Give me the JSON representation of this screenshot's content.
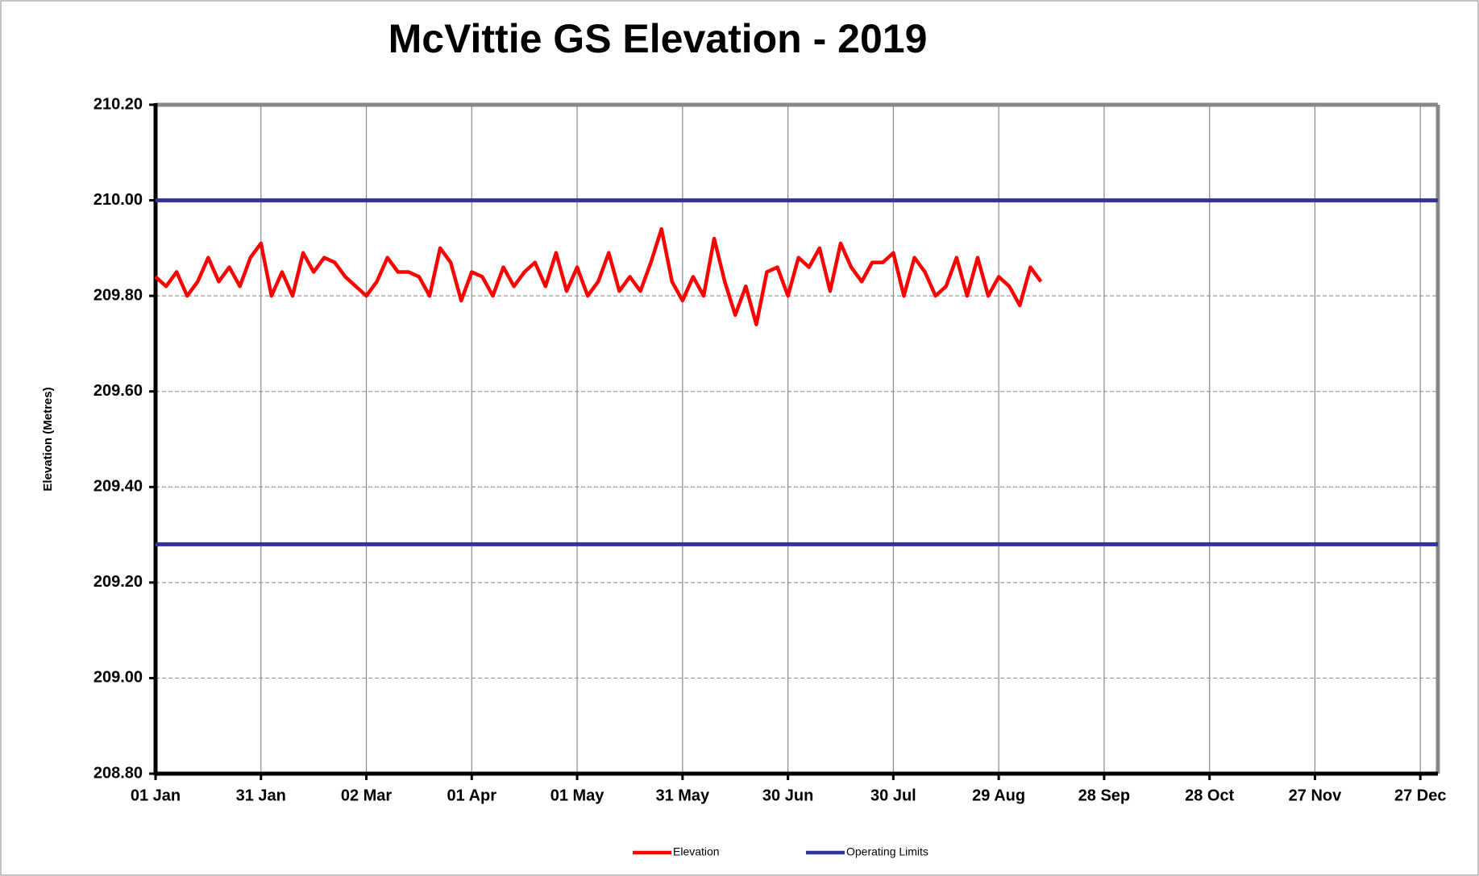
{
  "chart_data": {
    "type": "line",
    "title": "McVittie GS Elevation - 2019",
    "y_label": "Elevation (Metres)",
    "xlim": [
      0,
      365
    ],
    "xticks": [
      {
        "value": 0,
        "label": "01 Jan"
      },
      {
        "value": 30,
        "label": "31 Jan"
      },
      {
        "value": 60,
        "label": "02 Mar"
      },
      {
        "value": 90,
        "label": "01 Apr"
      },
      {
        "value": 120,
        "label": "01 May"
      },
      {
        "value": 150,
        "label": "31 May"
      },
      {
        "value": 180,
        "label": "30 Jun"
      },
      {
        "value": 210,
        "label": "30 Jul"
      },
      {
        "value": 240,
        "label": "29 Aug"
      },
      {
        "value": 270,
        "label": "28 Sep"
      },
      {
        "value": 300,
        "label": "28 Oct"
      },
      {
        "value": 330,
        "label": "27 Nov"
      },
      {
        "value": 360,
        "label": "27 Dec"
      }
    ],
    "ylim": [
      208.8,
      210.2
    ],
    "yticks": [
      {
        "value": 208.8,
        "label": "208.80"
      },
      {
        "value": 209.0,
        "label": "209.00"
      },
      {
        "value": 209.2,
        "label": "209.20"
      },
      {
        "value": 209.4,
        "label": "209.40"
      },
      {
        "value": 209.6,
        "label": "209.60"
      },
      {
        "value": 209.8,
        "label": "209.80"
      },
      {
        "value": 210.0,
        "label": "210.00"
      },
      {
        "value": 210.2,
        "label": "210.20"
      }
    ],
    "grid": true,
    "legend": "bottom",
    "series": [
      {
        "name": "Elevation",
        "color": "#ff0000",
        "x": [
          0,
          3,
          6,
          9,
          12,
          15,
          18,
          21,
          24,
          27,
          30,
          33,
          36,
          39,
          42,
          45,
          48,
          51,
          54,
          57,
          60,
          63,
          66,
          69,
          72,
          75,
          78,
          81,
          84,
          87,
          90,
          93,
          96,
          99,
          102,
          105,
          108,
          111,
          114,
          117,
          120,
          123,
          126,
          129,
          132,
          135,
          138,
          141,
          144,
          147,
          150,
          153,
          156,
          159,
          162,
          165,
          168,
          171,
          174,
          177,
          180,
          183,
          186,
          189,
          192,
          195,
          198,
          201,
          204,
          207,
          210,
          213,
          216,
          219,
          222,
          225,
          228,
          231,
          234,
          237,
          240,
          243,
          246,
          249,
          252
        ],
        "values": [
          209.84,
          209.82,
          209.85,
          209.8,
          209.83,
          209.88,
          209.83,
          209.86,
          209.82,
          209.88,
          209.91,
          209.8,
          209.85,
          209.8,
          209.89,
          209.85,
          209.88,
          209.87,
          209.84,
          209.82,
          209.8,
          209.83,
          209.88,
          209.85,
          209.85,
          209.84,
          209.8,
          209.9,
          209.87,
          209.79,
          209.85,
          209.84,
          209.8,
          209.86,
          209.82,
          209.85,
          209.87,
          209.82,
          209.89,
          209.81,
          209.86,
          209.8,
          209.83,
          209.89,
          209.81,
          209.84,
          209.81,
          209.87,
          209.94,
          209.83,
          209.79,
          209.84,
          209.8,
          209.92,
          209.83,
          209.76,
          209.82,
          209.74,
          209.85,
          209.86,
          209.8,
          209.88,
          209.86,
          209.9,
          209.81,
          209.91,
          209.86,
          209.83,
          209.87,
          209.87,
          209.89,
          209.8,
          209.88,
          209.85,
          209.8,
          209.82,
          209.88,
          209.8,
          209.88,
          209.8,
          209.84,
          209.82,
          209.78,
          209.86,
          209.83
        ]
      },
      {
        "name": "Operating Limits",
        "color": "#333399",
        "values": [
          210.0,
          209.28
        ]
      }
    ]
  }
}
